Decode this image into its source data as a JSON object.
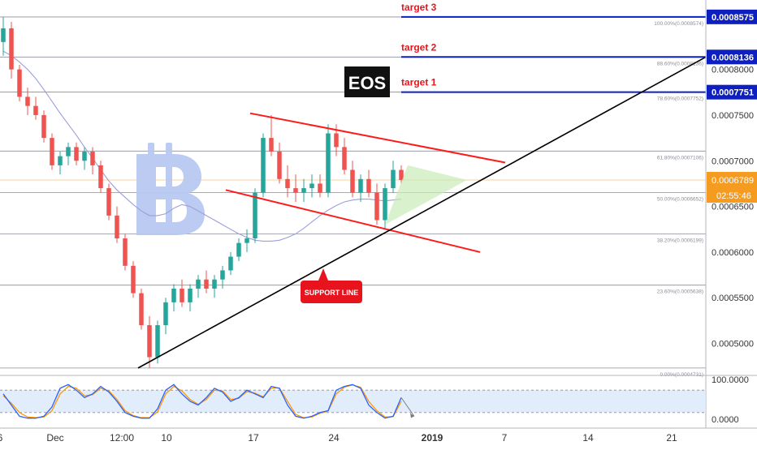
{
  "chart_data": {
    "type": "line",
    "symbol": "EOS",
    "candles": [
      [
        0.00083,
        0.0008574,
        0.000815,
        0.000845
      ],
      [
        0.000845,
        0.000852,
        0.00079,
        0.0008
      ],
      [
        0.0008,
        0.000805,
        0.000765,
        0.00077
      ],
      [
        0.00077,
        0.00078,
        0.00075,
        0.00076
      ],
      [
        0.00076,
        0.00077,
        0.000745,
        0.00075
      ],
      [
        0.00075,
        0.000755,
        0.00072,
        0.000725
      ],
      [
        0.000725,
        0.00073,
        0.00069,
        0.000695
      ],
      [
        0.000695,
        0.00071,
        0.000685,
        0.000705
      ],
      [
        0.000705,
        0.00072,
        0.000695,
        0.000715
      ],
      [
        0.000715,
        0.00072,
        0.000695,
        0.0007
      ],
      [
        0.0007,
        0.000715,
        0.00069,
        0.00071
      ],
      [
        0.00071,
        0.000715,
        0.000685,
        0.000695
      ],
      [
        0.000695,
        0.0007,
        0.000665,
        0.00067
      ],
      [
        0.00067,
        0.000675,
        0.000635,
        0.00064
      ],
      [
        0.00064,
        0.00065,
        0.00061,
        0.000615
      ],
      [
        0.000615,
        0.00062,
        0.00058,
        0.000585
      ],
      [
        0.000585,
        0.00059,
        0.00055,
        0.000555
      ],
      [
        0.000555,
        0.00056,
        0.000515,
        0.00052
      ],
      [
        0.00052,
        0.00053,
        0.0004731,
        0.000485
      ],
      [
        0.000485,
        0.000525,
        0.000478,
        0.00052
      ],
      [
        0.00052,
        0.00055,
        0.00051,
        0.000545
      ],
      [
        0.000545,
        0.000565,
        0.000535,
        0.00056
      ],
      [
        0.00056,
        0.00057,
        0.00054,
        0.000545
      ],
      [
        0.000545,
        0.000565,
        0.000535,
        0.00056
      ],
      [
        0.00056,
        0.000575,
        0.00055,
        0.00057
      ],
      [
        0.00057,
        0.00058,
        0.000555,
        0.00056
      ],
      [
        0.00056,
        0.000575,
        0.00055,
        0.00057
      ],
      [
        0.00057,
        0.000585,
        0.00056,
        0.00058
      ],
      [
        0.00058,
        0.0006,
        0.000575,
        0.000595
      ],
      [
        0.000595,
        0.000615,
        0.00059,
        0.00061
      ],
      [
        0.00061,
        0.000625,
        0.0006,
        0.000615
      ],
      [
        0.000615,
        0.00067,
        0.00061,
        0.000665
      ],
      [
        0.000665,
        0.00073,
        0.00066,
        0.000725
      ],
      [
        0.000725,
        0.00075,
        0.000705,
        0.00071
      ],
      [
        0.00071,
        0.00072,
        0.000675,
        0.00068
      ],
      [
        0.00068,
        0.000695,
        0.00066,
        0.00067
      ],
      [
        0.00067,
        0.000685,
        0.000655,
        0.000665
      ],
      [
        0.000665,
        0.00068,
        0.000655,
        0.00067
      ],
      [
        0.00067,
        0.000685,
        0.00066,
        0.000675
      ],
      [
        0.000675,
        0.000685,
        0.00066,
        0.000665
      ],
      [
        0.000665,
        0.00074,
        0.00066,
        0.00073
      ],
      [
        0.00073,
        0.00074,
        0.000705,
        0.000715
      ],
      [
        0.000715,
        0.000725,
        0.000685,
        0.00069
      ],
      [
        0.00069,
        0.0007,
        0.00066,
        0.000665
      ],
      [
        0.000665,
        0.000685,
        0.000655,
        0.00068
      ],
      [
        0.00068,
        0.00069,
        0.00066,
        0.000665
      ],
      [
        0.000665,
        0.000675,
        0.00063,
        0.000635
      ],
      [
        0.000635,
        0.000675,
        0.000625,
        0.00067
      ],
      [
        0.00067,
        0.0007,
        0.000665,
        0.00069
      ],
      [
        0.00069,
        0.000695,
        0.000675,
        0.0006789
      ]
    ],
    "moving_average": [
      0.00082,
      0.000815,
      0.000808,
      0.0008,
      0.00079,
      0.000778,
      0.000765,
      0.000752,
      0.00074,
      0.000728,
      0.000715,
      0.000703,
      0.00069,
      0.000678,
      0.000668,
      0.00066,
      0.000652,
      0.000645,
      0.00064,
      0.00064,
      0.000642,
      0.000648,
      0.000652,
      0.00065,
      0.000645,
      0.00064,
      0.000635,
      0.00063,
      0.000625,
      0.00062,
      0.000616,
      0.000613,
      0.000612,
      0.000612,
      0.000613,
      0.000616,
      0.00062,
      0.000626,
      0.000633,
      0.00064,
      0.000646,
      0.000651,
      0.000655,
      0.000657,
      0.000658,
      0.000658,
      0.000657,
      0.000656,
      0.000657,
      0.000658
    ],
    "price_axis_ticks": [
      "0.0008000",
      "0.0007500",
      "0.0007000",
      "0.0006500",
      "0.0006000",
      "0.0005500",
      "0.0005000"
    ],
    "date_axis_ticks": [
      "6",
      "Dec",
      "12:00",
      "10",
      "17",
      "24",
      "2019",
      "7",
      "14",
      "21"
    ],
    "fib_levels": [
      {
        "label": "100.00%(0.0008574)",
        "value": 0.0008574
      },
      {
        "label": "88.60%(0.0008136)",
        "value": 0.0008136
      },
      {
        "label": "78.60%(0.0007752)",
        "value": 0.0007752
      },
      {
        "label": "61.80%(0.0007106)",
        "value": 0.0007106
      },
      {
        "label": "50.00%(0.0006652)",
        "value": 0.0006652
      },
      {
        "label": "38.20%(0.0006199)",
        "value": 0.0006199
      },
      {
        "label": "23.60%(0.0005638)",
        "value": 0.0005638
      },
      {
        "label": "0.00%(0.0004731)",
        "value": 0.0004731
      }
    ],
    "targets": [
      {
        "label": "target 3",
        "value": 0.0008575,
        "tag": "0.0008575"
      },
      {
        "label": "target 2",
        "value": 0.0008136,
        "tag": "0.0008136"
      },
      {
        "label": "target 1",
        "value": 0.0007751,
        "tag": "0.0007751"
      }
    ],
    "current_price": {
      "value": 0.0006789,
      "tag": "0.0006789",
      "countdown": "02:55:46"
    },
    "support_label": "SUPPORT LINE",
    "ylim": [
      0.00046,
      0.00088
    ],
    "oscillator": {
      "ticks": [
        "100.0000",
        "0.0000"
      ],
      "k": [
        70,
        40,
        10,
        5,
        5,
        10,
        35,
        85,
        95,
        80,
        60,
        70,
        90,
        75,
        50,
        20,
        10,
        5,
        5,
        30,
        80,
        95,
        70,
        50,
        40,
        60,
        85,
        75,
        50,
        60,
        80,
        70,
        60,
        90,
        85,
        40,
        10,
        5,
        10,
        20,
        25,
        80,
        90,
        95,
        85,
        40,
        20,
        5,
        10,
        60
      ],
      "d": [
        65,
        45,
        20,
        8,
        6,
        8,
        25,
        70,
        90,
        85,
        65,
        68,
        85,
        78,
        55,
        25,
        12,
        6,
        6,
        22,
        70,
        90,
        78,
        55,
        42,
        55,
        80,
        78,
        55,
        58,
        76,
        72,
        62,
        85,
        86,
        50,
        15,
        6,
        8,
        18,
        24,
        70,
        88,
        94,
        88,
        50,
        25,
        8,
        9,
        50
      ]
    },
    "colors": {
      "up": "#26a69a",
      "down": "#ef5350",
      "fib": "#787b86",
      "target": "#0d1fbf",
      "channel": "#ff1a1a",
      "trend": "#000000",
      "moving_average": "#9c9fd8",
      "band": "#dbe8fb",
      "k_line": "#2962ff",
      "d_line": "#ff9800",
      "current_price": "#f59b1f"
    },
    "icons": [
      "bitcoin-logo"
    ]
  }
}
